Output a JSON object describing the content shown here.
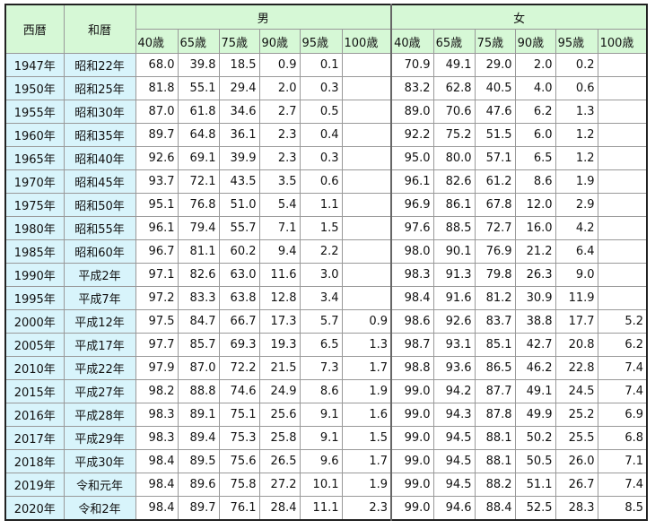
{
  "header": {
    "western": "西暦",
    "japanese": "和暦",
    "male": "男",
    "female": "女",
    "male_ages": [
      "40歳",
      "65歳",
      "75歳",
      "90歳",
      "95歳",
      "100歳"
    ],
    "female_ages": [
      "40歳",
      "65歳",
      "75歳",
      "90歳",
      "95歳",
      "100歳"
    ]
  },
  "rows": [
    [
      "1947年",
      "昭和22年",
      "68.0",
      "39.8",
      "18.5",
      "0.9",
      "0.1",
      null,
      "70.9",
      "49.1",
      "29.0",
      "2.0",
      "0.2",
      null
    ],
    [
      "1950年",
      "昭和25年",
      "81.8",
      "55.1",
      "29.4",
      "2.0",
      "0.3",
      null,
      "83.2",
      "62.8",
      "40.5",
      "4.0",
      "0.6",
      null
    ],
    [
      "1955年",
      "昭和30年",
      "87.0",
      "61.8",
      "34.6",
      "2.7",
      "0.5",
      null,
      "89.0",
      "70.6",
      "47.6",
      "6.2",
      "1.3",
      null
    ],
    [
      "1960年",
      "昭和35年",
      "89.7",
      "64.8",
      "36.1",
      "2.3",
      "0.4",
      null,
      "92.2",
      "75.2",
      "51.5",
      "6.0",
      "1.2",
      null
    ],
    [
      "1965年",
      "昭和40年",
      "92.6",
      "69.1",
      "39.9",
      "2.3",
      "0.3",
      null,
      "95.0",
      "80.0",
      "57.1",
      "6.5",
      "1.2",
      null
    ],
    [
      "1970年",
      "昭和45年",
      "93.7",
      "72.1",
      "43.5",
      "3.5",
      "0.6",
      null,
      "96.1",
      "82.6",
      "61.2",
      "8.6",
      "1.9",
      null
    ],
    [
      "1975年",
      "昭和50年",
      "95.1",
      "76.8",
      "51.0",
      "5.4",
      "1.1",
      null,
      "96.9",
      "86.1",
      "67.8",
      "12.0",
      "2.9",
      null
    ],
    [
      "1980年",
      "昭和55年",
      "96.1",
      "79.4",
      "55.7",
      "7.1",
      "1.5",
      null,
      "97.6",
      "88.5",
      "72.7",
      "16.0",
      "4.2",
      null
    ],
    [
      "1985年",
      "昭和60年",
      "96.7",
      "81.1",
      "60.2",
      "9.4",
      "2.2",
      null,
      "98.0",
      "90.1",
      "76.9",
      "21.2",
      "6.4",
      null
    ],
    [
      "1990年",
      "平成2年",
      "97.1",
      "82.6",
      "63.0",
      "11.6",
      "3.0",
      null,
      "98.3",
      "91.3",
      "79.8",
      "26.3",
      "9.0",
      null
    ],
    [
      "1995年",
      "平成7年",
      "97.2",
      "83.3",
      "63.8",
      "12.8",
      "3.4",
      null,
      "98.4",
      "91.6",
      "81.2",
      "30.9",
      "11.9",
      null
    ],
    [
      "2000年",
      "平成12年",
      "97.5",
      "84.7",
      "66.7",
      "17.3",
      "5.7",
      "0.9",
      "98.6",
      "92.6",
      "83.7",
      "38.8",
      "17.7",
      "5.2"
    ],
    [
      "2005年",
      "平成17年",
      "97.7",
      "85.7",
      "69.3",
      "19.3",
      "6.5",
      "1.3",
      "98.7",
      "93.1",
      "85.1",
      "42.7",
      "20.8",
      "6.2"
    ],
    [
      "2010年",
      "平成22年",
      "97.9",
      "87.0",
      "72.2",
      "21.5",
      "7.3",
      "1.7",
      "98.8",
      "93.6",
      "86.5",
      "46.2",
      "22.8",
      "7.4"
    ],
    [
      "2015年",
      "平成27年",
      "98.2",
      "88.8",
      "74.6",
      "24.9",
      "8.6",
      "1.9",
      "99.0",
      "94.2",
      "87.7",
      "49.1",
      "24.5",
      "7.4"
    ],
    [
      "2016年",
      "平成28年",
      "98.3",
      "89.1",
      "75.1",
      "25.6",
      "9.1",
      "1.6",
      "99.0",
      "94.3",
      "87.8",
      "49.9",
      "25.2",
      "6.9"
    ],
    [
      "2017年",
      "平成29年",
      "98.3",
      "89.4",
      "75.3",
      "25.8",
      "9.1",
      "1.5",
      "99.0",
      "94.5",
      "88.1",
      "50.2",
      "25.5",
      "6.8"
    ],
    [
      "2018年",
      "平成30年",
      "98.4",
      "89.5",
      "75.6",
      "26.5",
      "9.6",
      "1.7",
      "99.0",
      "94.5",
      "88.1",
      "50.5",
      "26.0",
      "7.1"
    ],
    [
      "2019年",
      "令和元年",
      "98.4",
      "89.6",
      "75.8",
      "27.2",
      "10.1",
      "1.9",
      "99.0",
      "94.5",
      "88.2",
      "51.1",
      "26.7",
      "7.4"
    ],
    [
      "2020年",
      "令和2年",
      "98.4",
      "89.7",
      "76.1",
      "28.4",
      "11.1",
      "2.3",
      "99.0",
      "94.6",
      "88.4",
      "52.5",
      "28.3",
      "8.5"
    ]
  ]
}
